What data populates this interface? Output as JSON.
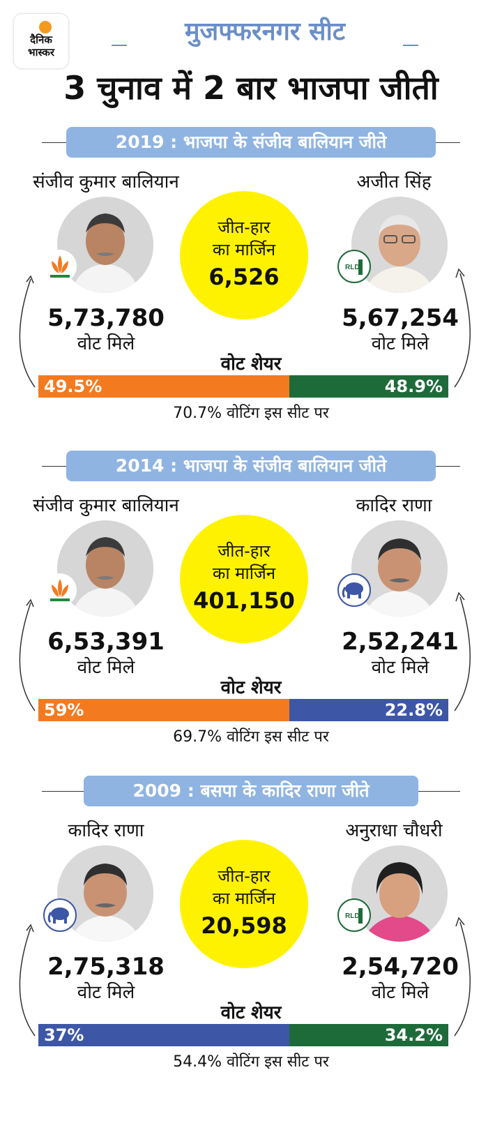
{
  "brand": {
    "line1": "दैनिक",
    "line2": "भास्कर"
  },
  "seat_title": "मुजफ्फरनगर सीट",
  "headline": "3 चुनाव में 2 बार भाजपा जीती",
  "elections": [
    {
      "banner": "2019 : भाजपा के संजीव बालियान जीते",
      "left": {
        "name": "संजीव कुमार बालियान",
        "votes": "5,73,780",
        "votes_label": "वोट मिले",
        "party_icon": "lotus-icon",
        "share": "49.5%",
        "color": "#f47a20"
      },
      "right": {
        "name": "अजीत सिंह",
        "votes": "5,67,254",
        "votes_label": "वोट मिले",
        "party_icon": "rld-icon",
        "party_text": "RLD",
        "share": "48.9%",
        "color": "#1e6b3a"
      },
      "margin_line1": "जीत-हार",
      "margin_line2": "का मार्जिन",
      "margin_value": "6,526",
      "vote_share_label": "वोट शेयर",
      "turnout": "70.7% वोटिंग इस सीट पर"
    },
    {
      "banner": "2014 : भाजपा के संजीव बालियान जीते",
      "left": {
        "name": "संजीव कुमार बालियान",
        "votes": "6,53,391",
        "votes_label": "वोट मिले",
        "party_icon": "lotus-icon",
        "share": "59%",
        "color": "#f47a20"
      },
      "right": {
        "name": "कादिर राणा",
        "votes": "2,52,241",
        "votes_label": "वोट मिले",
        "party_icon": "elephant-icon",
        "share": "22.8%",
        "color": "#3d56a6"
      },
      "margin_line1": "जीत-हार",
      "margin_line2": "का मार्जिन",
      "margin_value": "401,150",
      "vote_share_label": "वोट शेयर",
      "turnout": "69.7% वोटिंग इस सीट पर"
    },
    {
      "banner": "2009 : बसपा के कादिर राणा जीते",
      "left": {
        "name": "कादिर राणा",
        "votes": "2,75,318",
        "votes_label": "वोट मिले",
        "party_icon": "elephant-icon",
        "share": "37%",
        "color": "#3d56a6"
      },
      "right": {
        "name": "अनुराधा चौधरी",
        "votes": "2,54,720",
        "votes_label": "वोट मिले",
        "party_icon": "rld-icon",
        "party_text": "RLD",
        "share": "34.2%",
        "color": "#1e6b3a"
      },
      "margin_line1": "जीत-हार",
      "margin_line2": "का मार्जिन",
      "margin_value": "20,598",
      "vote_share_label": "वोट शेयर",
      "turnout": "54.4% वोटिंग इस सीट पर"
    }
  ]
}
